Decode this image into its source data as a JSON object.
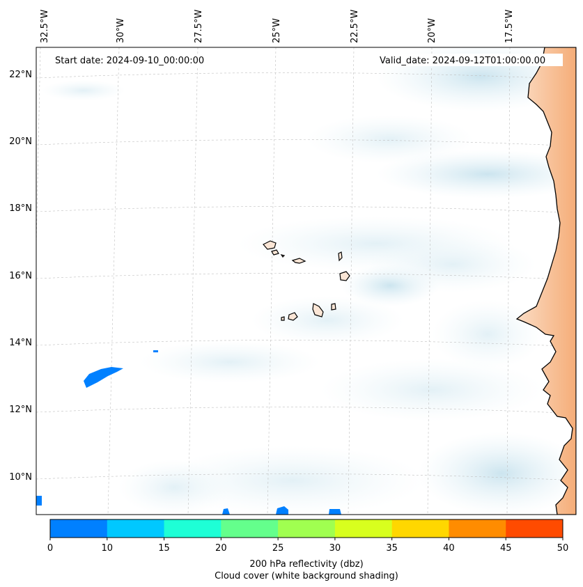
{
  "map": {
    "start_date": "Start date: 2024-09-10_00:00:00",
    "valid_date": "Valid_date: 2024-09-12T01:00:00.00",
    "lon_labels": [
      "32.5°W",
      "30°W",
      "27.5°W",
      "25°W",
      "22.5°W",
      "20°W",
      "17.5°W"
    ],
    "lat_labels": [
      "22°N",
      "20°N",
      "18°N",
      "16°N",
      "14°N",
      "12°N",
      "10°N"
    ],
    "land_color": "#f7b98a",
    "cloud_color": "#d4e9f1",
    "coast_color": "#000000"
  },
  "colorbar": {
    "colors": [
      "#0080ff",
      "#00c8ff",
      "#1effd6",
      "#64ff8c",
      "#a0ff50",
      "#d8ff1e",
      "#ffd700",
      "#ff8c00",
      "#ff4b00"
    ],
    "ticks": [
      "0",
      "10",
      "15",
      "20",
      "25",
      "30",
      "35",
      "40",
      "45",
      "50"
    ],
    "label_line1": "200 hPa reflectivity (dbz)",
    "label_line2": "Cloud cover (white background shading)"
  }
}
